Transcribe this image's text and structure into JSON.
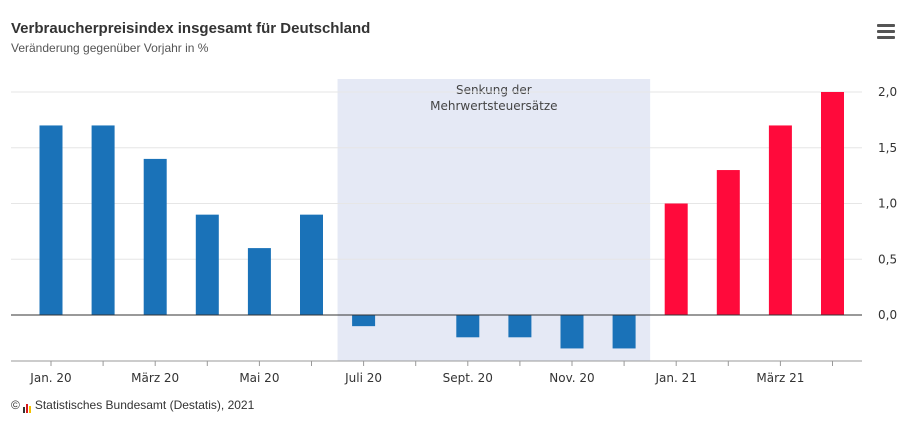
{
  "header": {
    "title": "Verbraucherpreisindex insgesamt für Deutschland",
    "subtitle": "Veränderung gegenüber Vorjahr in %"
  },
  "menu": {
    "icon": "hamburger-menu-icon"
  },
  "footer": {
    "copyright_symbol": "©",
    "credit": "Statistisches Bundesamt (Destatis), 2021",
    "logo_icon": "destatis-logo-icon"
  },
  "colors": {
    "before": "#1a72b8",
    "after": "#ff0a3b",
    "band": "#e5e9f5",
    "grid": "#e6e6e6",
    "axis": "#333333"
  },
  "chart_data": {
    "type": "bar",
    "title": "Verbraucherpreisindex insgesamt für Deutschland",
    "subtitle": "Veränderung gegenüber Vorjahr in %",
    "xlabel": "",
    "ylabel": "",
    "y_axis_side": "right",
    "ylim": [
      -0.4,
      2.1
    ],
    "yticks": [
      0,
      0.5,
      1,
      1.5,
      2
    ],
    "ytick_labels": [
      "0,0",
      "0,5",
      "1,0",
      "1,5",
      "2,0"
    ],
    "grid": true,
    "categories": [
      "Jan. 20",
      "Feb. 20",
      "März 20",
      "Apr. 20",
      "Mai 20",
      "Juni 20",
      "Juli 20",
      "Aug. 20",
      "Sept. 20",
      "Okt. 20",
      "Nov. 20",
      "Dez. 20",
      "Jan. 21",
      "Feb. 21",
      "März 21",
      "Apr. 21"
    ],
    "x_tick_labels": [
      {
        "index": 0,
        "label": "Jan. 20"
      },
      {
        "index": 2,
        "label": "März 20"
      },
      {
        "index": 4,
        "label": "Mai 20"
      },
      {
        "index": 6,
        "label": "Juli 20"
      },
      {
        "index": 8,
        "label": "Sept. 20"
      },
      {
        "index": 10,
        "label": "Nov. 20"
      },
      {
        "index": 12,
        "label": "Jan. 21"
      },
      {
        "index": 14,
        "label": "März 21"
      }
    ],
    "values": [
      1.7,
      1.7,
      1.4,
      0.9,
      0.6,
      0.9,
      -0.1,
      0.0,
      -0.2,
      -0.2,
      -0.3,
      -0.3,
      1.0,
      1.3,
      1.7,
      2.0
    ],
    "color_split_index": 12,
    "band": {
      "from_index": 6,
      "to_index": 11,
      "label_lines": [
        "Senkung der",
        "Mehrwertsteuersätze"
      ]
    }
  }
}
